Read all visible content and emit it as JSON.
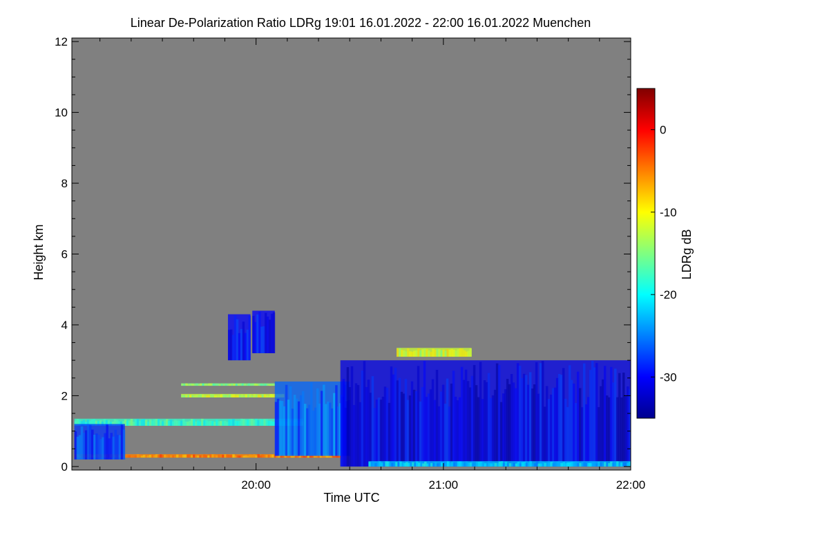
{
  "chart_data": {
    "type": "heatmap",
    "title": "Linear De-Polarization Ratio LDRg   19:01 16.01.2022 - 22:00 16.01.2022 Muenchen",
    "xlabel": "Time UTC",
    "ylabel": "Height km",
    "xlim_hours": [
      19.0167,
      22.0
    ],
    "ylim": [
      -0.1,
      12.1
    ],
    "x_ticks": [
      {
        "value": 20.0,
        "label": "20:00"
      },
      {
        "value": 21.0,
        "label": "21:00"
      },
      {
        "value": 22.0,
        "label": "22:00"
      }
    ],
    "x_minor_ticks": [
      19.1667,
      19.3333,
      19.5,
      19.6667,
      19.8333,
      20.1667,
      20.3333,
      20.5,
      20.6667,
      20.8333,
      21.1667,
      21.3333,
      21.5,
      21.6667,
      21.8333
    ],
    "y_ticks": [
      {
        "value": 0,
        "label": "0"
      },
      {
        "value": 2,
        "label": "2"
      },
      {
        "value": 4,
        "label": "4"
      },
      {
        "value": 6,
        "label": "6"
      },
      {
        "value": 8,
        "label": "8"
      },
      {
        "value": 10,
        "label": "10"
      },
      {
        "value": 12,
        "label": "12"
      }
    ],
    "y_minor_step": 0.5,
    "background_color": "#808080",
    "colorbar": {
      "label": "LDRg dB",
      "range": [
        -35,
        5
      ],
      "ticks": [
        {
          "value": 0,
          "label": "0"
        },
        {
          "value": -10,
          "label": "-10"
        },
        {
          "value": -20,
          "label": "-20"
        },
        {
          "value": -30,
          "label": "-30"
        }
      ],
      "colormap": [
        "#00008f",
        "#0000ff",
        "#0080ff",
        "#00ffff",
        "#80ff80",
        "#ffff00",
        "#ff8000",
        "#ff0000",
        "#800000"
      ]
    },
    "features": [
      {
        "name": "surface-layer",
        "t_start": 19.03,
        "t_end": 20.45,
        "h_bottom": 0.25,
        "h_top": 0.35,
        "ldr": -5
      },
      {
        "name": "aerosol-layer",
        "t_start": 19.03,
        "t_end": 20.25,
        "h_bottom": 1.15,
        "h_top": 1.35,
        "ldr": -18
      },
      {
        "name": "low-scatter",
        "t_start": 19.03,
        "t_end": 19.3,
        "h_bottom": 0.2,
        "h_top": 1.2,
        "ldr": -28
      },
      {
        "name": "elevated-patch-1",
        "t_start": 19.85,
        "t_end": 19.97,
        "h_bottom": 3.0,
        "h_top": 4.3,
        "ldr": -30
      },
      {
        "name": "elevated-patch-2",
        "t_start": 19.98,
        "t_end": 20.1,
        "h_bottom": 3.2,
        "h_top": 4.4,
        "ldr": -30
      },
      {
        "name": "thin-layer-1",
        "t_start": 19.6,
        "t_end": 20.1,
        "h_bottom": 2.28,
        "h_top": 2.35,
        "ldr": -15
      },
      {
        "name": "thin-layer-2",
        "t_start": 19.6,
        "t_end": 20.15,
        "h_bottom": 1.95,
        "h_top": 2.05,
        "ldr": -12
      },
      {
        "name": "cloud-transition",
        "t_start": 20.1,
        "t_end": 20.5,
        "h_bottom": 0.3,
        "h_top": 2.4,
        "ldr": -26
      },
      {
        "name": "main-cloud",
        "t_start": 20.45,
        "t_end": 22.0,
        "h_bottom": 0.0,
        "h_top": 3.0,
        "ldr": -31
      },
      {
        "name": "cloud-top-layer",
        "t_start": 20.75,
        "t_end": 21.15,
        "h_bottom": 3.1,
        "h_top": 3.35,
        "ldr": -12
      },
      {
        "name": "surface-edge",
        "t_start": 20.6,
        "t_end": 22.0,
        "h_bottom": 0.0,
        "h_top": 0.15,
        "ldr": -22
      }
    ]
  }
}
